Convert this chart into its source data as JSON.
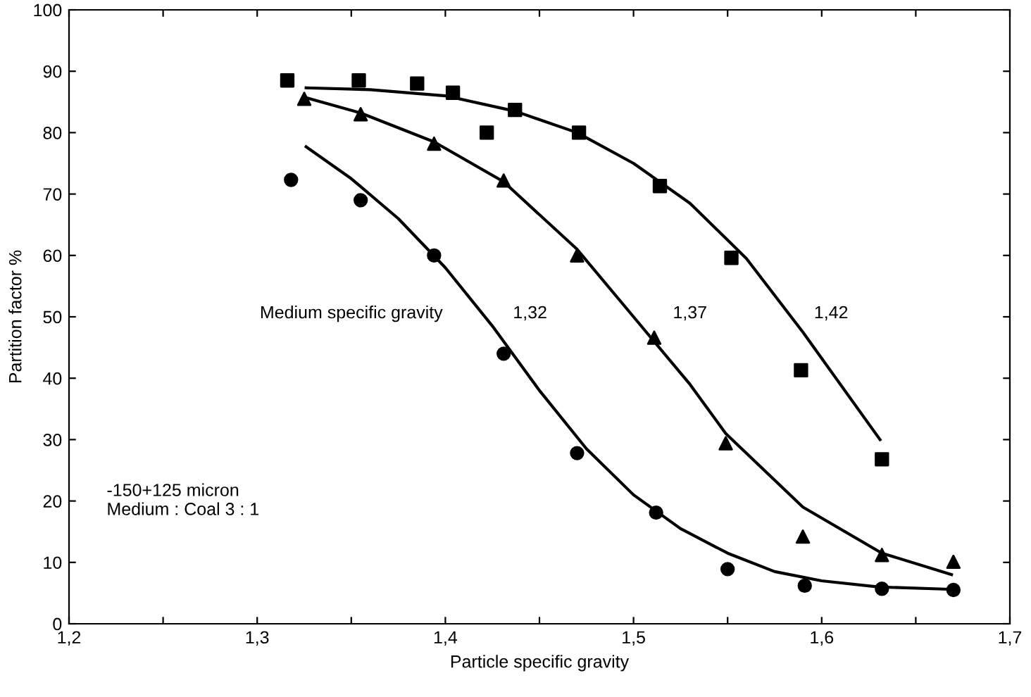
{
  "chart_data": {
    "type": "scatter",
    "xlabel": "Particle specific gravity",
    "ylabel": "Partition factor %",
    "xlim": [
      1.2,
      1.7
    ],
    "ylim": [
      0,
      100
    ],
    "xticks": [
      {
        "value": 1.2,
        "label": "1,2"
      },
      {
        "value": 1.25,
        "label": null
      },
      {
        "value": 1.3,
        "label": "1,3"
      },
      {
        "value": 1.35,
        "label": null
      },
      {
        "value": 1.4,
        "label": "1,4"
      },
      {
        "value": 1.45,
        "label": null
      },
      {
        "value": 1.5,
        "label": "1,5"
      },
      {
        "value": 1.55,
        "label": null
      },
      {
        "value": 1.6,
        "label": "1,6"
      },
      {
        "value": 1.65,
        "label": null
      },
      {
        "value": 1.7,
        "label": "1,7"
      }
    ],
    "yticks": [
      0,
      10,
      20,
      30,
      40,
      50,
      60,
      70,
      80,
      90,
      100
    ],
    "grid": false,
    "legend": false,
    "series": [
      {
        "marker": "square",
        "color": "#000000",
        "x": [
          1.316,
          1.354,
          1.385,
          1.404,
          1.422,
          1.437,
          1.471,
          1.514,
          1.552,
          1.589,
          1.632
        ],
        "values": [
          88.5,
          88.5,
          88,
          86.5,
          80,
          83.7,
          80,
          71.3,
          59.6,
          41.3,
          26.8
        ]
      },
      {
        "marker": "triangle",
        "color": "#000000",
        "x": [
          1.325,
          1.355,
          1.394,
          1.431,
          1.47,
          1.511,
          1.549,
          1.59,
          1.632,
          1.67
        ],
        "values": [
          85.5,
          83,
          78.2,
          72.2,
          60,
          46.6,
          29.4,
          14.2,
          11.2,
          10.1
        ]
      },
      {
        "marker": "circle",
        "color": "#000000",
        "x": [
          1.318,
          1.355,
          1.394,
          1.431,
          1.47,
          1.512,
          1.55,
          1.591,
          1.632,
          1.67
        ],
        "values": [
          72.3,
          69,
          60,
          44,
          27.8,
          18.1,
          8.9,
          6.2,
          5.7,
          5.5
        ]
      },
      {
        "type": "line",
        "marker": "none",
        "line_style": "solid",
        "color": "#000000",
        "x": [
          1.326,
          1.36,
          1.4,
          1.437,
          1.47,
          1.5,
          1.53,
          1.56,
          1.59,
          1.631
        ],
        "values": [
          87.3,
          87,
          86,
          83.5,
          80,
          75,
          68.5,
          59.5,
          47.5,
          30
        ]
      },
      {
        "type": "line",
        "marker": "none",
        "line_style": "solid",
        "color": "#000000",
        "x": [
          1.326,
          1.355,
          1.394,
          1.431,
          1.47,
          1.5,
          1.53,
          1.549,
          1.59,
          1.632,
          1.669
        ],
        "values": [
          85.7,
          83.2,
          78.5,
          72,
          61,
          50,
          39,
          31,
          19,
          11.5,
          8
        ]
      },
      {
        "type": "line",
        "marker": "none",
        "line_style": "solid",
        "color": "#000000",
        "x": [
          1.326,
          1.35,
          1.375,
          1.4,
          1.425,
          1.45,
          1.475,
          1.5,
          1.525,
          1.55,
          1.575,
          1.6,
          1.63,
          1.67
        ],
        "values": [
          77.7,
          72.5,
          66,
          58,
          48.5,
          38,
          28.5,
          21,
          15.5,
          11.5,
          8.5,
          7,
          6,
          5.6
        ]
      }
    ],
    "annotations": [
      "Medium specific gravity",
      "1,32",
      "1,37",
      "1,42",
      "-150+125 micron\nMedium : Coal 3 : 1"
    ]
  }
}
